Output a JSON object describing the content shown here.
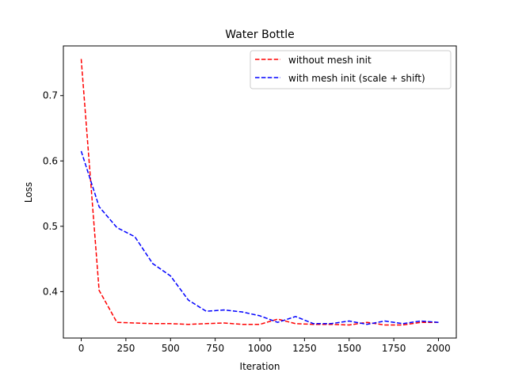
{
  "chart_data": {
    "type": "line",
    "title": "Water Bottle",
    "xlabel": "Iteration",
    "ylabel": "Loss",
    "xlim": [
      -100,
      2100
    ],
    "ylim": [
      0.329,
      0.776
    ],
    "xticks": [
      0,
      250,
      500,
      750,
      1000,
      1250,
      1500,
      1750,
      2000
    ],
    "yticks": [
      0.4,
      0.5,
      0.6,
      0.7
    ],
    "xtick_labels": [
      "0",
      "250",
      "500",
      "750",
      "1000",
      "1250",
      "1500",
      "1750",
      "2000"
    ],
    "ytick_labels": [
      "0.4",
      "0.5",
      "0.6",
      "0.7"
    ],
    "grid": false,
    "legend_position": "top-right",
    "series": [
      {
        "name": "without mesh init",
        "color": "#ff0000",
        "style": "dashed",
        "x": [
          0,
          100,
          200,
          300,
          400,
          500,
          600,
          700,
          800,
          900,
          1000,
          1100,
          1200,
          1300,
          1400,
          1500,
          1600,
          1700,
          1800,
          1900,
          2000
        ],
        "y": [
          0.756,
          0.402,
          0.353,
          0.352,
          0.351,
          0.351,
          0.35,
          0.351,
          0.352,
          0.35,
          0.35,
          0.358,
          0.351,
          0.35,
          0.35,
          0.349,
          0.353,
          0.349,
          0.349,
          0.353,
          0.353
        ]
      },
      {
        "name": "with mesh init (scale + shift)",
        "color": "#0000ff",
        "style": "dashed",
        "x": [
          0,
          100,
          200,
          300,
          400,
          500,
          600,
          700,
          800,
          900,
          1000,
          1100,
          1200,
          1300,
          1400,
          1500,
          1600,
          1700,
          1800,
          1900,
          2000
        ],
        "y": [
          0.615,
          0.53,
          0.498,
          0.484,
          0.443,
          0.424,
          0.387,
          0.37,
          0.372,
          0.369,
          0.363,
          0.353,
          0.362,
          0.351,
          0.351,
          0.355,
          0.35,
          0.355,
          0.351,
          0.355,
          0.353
        ]
      }
    ]
  }
}
